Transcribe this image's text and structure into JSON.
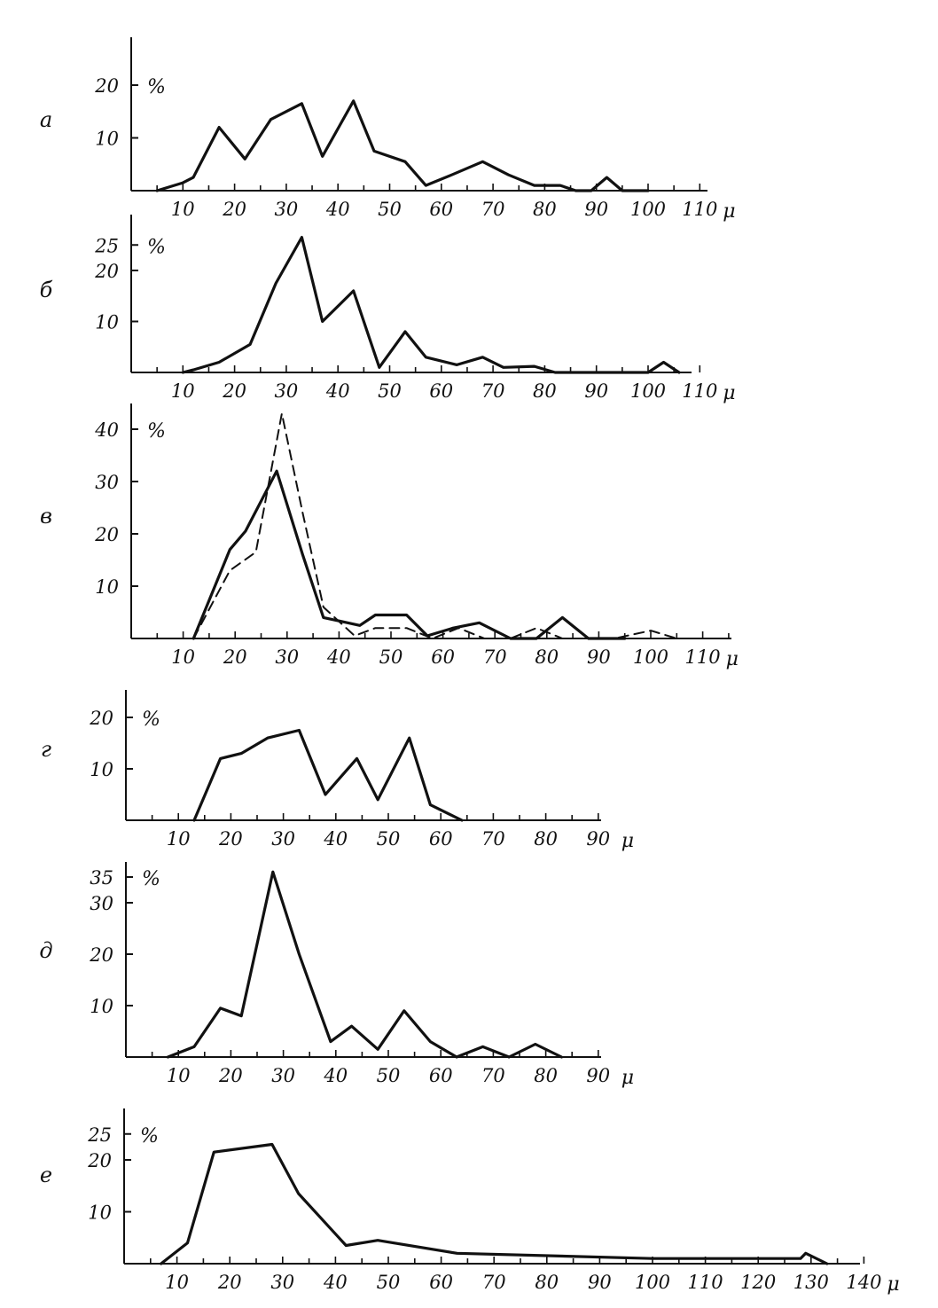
{
  "colors": {
    "ink": "#111111",
    "background": "#ffffff"
  },
  "chart_data": [
    {
      "type": "line",
      "panel_label": "а",
      "unit_y": "%",
      "unit_x": "μ",
      "xlim": [
        0,
        110
      ],
      "ylim": [
        0,
        28
      ],
      "y_ticks": [
        10,
        20
      ],
      "x_ticks": [
        10,
        20,
        30,
        40,
        50,
        60,
        70,
        80,
        90,
        100,
        110
      ],
      "grid": false,
      "series": [
        {
          "style": "solid",
          "points": [
            [
              5,
              0
            ],
            [
              10,
              1.5
            ],
            [
              12,
              2.5
            ],
            [
              17,
              12
            ],
            [
              22,
              6
            ],
            [
              27,
              13.5
            ],
            [
              33,
              16.5
            ],
            [
              37,
              6.5
            ],
            [
              43,
              17
            ],
            [
              47,
              7.5
            ],
            [
              53,
              5.5
            ],
            [
              57,
              1
            ],
            [
              62,
              3
            ],
            [
              68,
              5.5
            ],
            [
              73,
              3
            ],
            [
              78,
              1
            ],
            [
              83,
              1
            ],
            [
              86,
              0
            ],
            [
              89,
              0
            ],
            [
              92,
              2.5
            ],
            [
              95,
              0
            ],
            [
              100,
              0
            ]
          ]
        }
      ]
    },
    {
      "type": "line",
      "panel_label": "б",
      "unit_y": "%",
      "unit_x": "μ",
      "xlim": [
        0,
        110
      ],
      "ylim": [
        0,
        30
      ],
      "y_ticks": [
        10,
        20,
        25
      ],
      "x_ticks": [
        10,
        20,
        30,
        40,
        50,
        60,
        70,
        80,
        90,
        100,
        110
      ],
      "grid": false,
      "series": [
        {
          "style": "solid",
          "points": [
            [
              10,
              0
            ],
            [
              12,
              0.5
            ],
            [
              17,
              2
            ],
            [
              23,
              5.5
            ],
            [
              28,
              17.5
            ],
            [
              33,
              26.5
            ],
            [
              37,
              10
            ],
            [
              43,
              16
            ],
            [
              48,
              1
            ],
            [
              53,
              8
            ],
            [
              57,
              3
            ],
            [
              63,
              1.5
            ],
            [
              68,
              3
            ],
            [
              72,
              1
            ],
            [
              78,
              1.2
            ],
            [
              82,
              0
            ],
            [
              85,
              0
            ],
            [
              100,
              0
            ],
            [
              103,
              2
            ],
            [
              106,
              0
            ]
          ]
        }
      ]
    },
    {
      "type": "line",
      "panel_label": "в",
      "unit_y": "%",
      "unit_x": "μ",
      "xlim": [
        0,
        115
      ],
      "ylim": [
        0,
        45
      ],
      "y_ticks": [
        10,
        20,
        30,
        40
      ],
      "x_ticks": [
        10,
        20,
        30,
        40,
        50,
        60,
        70,
        80,
        90,
        100,
        110
      ],
      "grid": false,
      "series": [
        {
          "style": "solid",
          "points": [
            [
              12,
              0
            ],
            [
              19,
              17
            ],
            [
              22,
              20.5
            ],
            [
              28,
              32
            ],
            [
              33,
              16
            ],
            [
              37,
              4
            ],
            [
              44,
              2.5
            ],
            [
              47,
              4.5
            ],
            [
              53,
              4.5
            ],
            [
              57,
              0.5
            ],
            [
              62,
              2
            ],
            [
              67,
              3
            ],
            [
              73,
              0
            ],
            [
              78,
              0
            ],
            [
              83,
              4
            ],
            [
              88,
              0
            ],
            [
              95,
              0
            ]
          ]
        },
        {
          "style": "dashed",
          "points": [
            [
              12,
              0
            ],
            [
              19,
              13
            ],
            [
              24,
              16.5
            ],
            [
              29,
              43
            ],
            [
              33,
              24
            ],
            [
              37,
              6
            ],
            [
              43,
              0.5
            ],
            [
              47,
              2
            ],
            [
              53,
              2
            ],
            [
              58,
              0
            ],
            [
              63,
              2
            ],
            [
              68,
              0
            ],
            [
              73,
              0
            ],
            [
              78,
              2
            ],
            [
              83,
              0
            ],
            [
              93,
              0
            ],
            [
              100,
              1.5
            ],
            [
              105,
              0
            ]
          ]
        }
      ]
    },
    {
      "type": "line",
      "panel_label": "г",
      "unit_y": "%",
      "unit_x": "μ",
      "xlim": [
        0,
        92
      ],
      "ylim": [
        0,
        24
      ],
      "y_ticks": [
        10,
        20
      ],
      "x_ticks": [
        10,
        20,
        30,
        40,
        50,
        60,
        70,
        80,
        90
      ],
      "grid": false,
      "series": [
        {
          "style": "solid",
          "points": [
            [
              13,
              0
            ],
            [
              18,
              12
            ],
            [
              22,
              13
            ],
            [
              27,
              16
            ],
            [
              33,
              17.5
            ],
            [
              38,
              5
            ],
            [
              44,
              12
            ],
            [
              48,
              4
            ],
            [
              54,
              16
            ],
            [
              58,
              3
            ],
            [
              64,
              0
            ]
          ]
        }
      ]
    },
    {
      "type": "line",
      "panel_label": "д",
      "unit_y": "%",
      "unit_x": "μ",
      "xlim": [
        0,
        92
      ],
      "ylim": [
        0,
        38
      ],
      "y_ticks": [
        10,
        20,
        30,
        35
      ],
      "x_ticks": [
        10,
        20,
        30,
        40,
        50,
        60,
        70,
        80,
        90
      ],
      "grid": false,
      "series": [
        {
          "style": "solid",
          "points": [
            [
              8,
              0
            ],
            [
              13,
              2
            ],
            [
              18,
              9.5
            ],
            [
              22,
              8
            ],
            [
              28,
              36
            ],
            [
              33,
              20
            ],
            [
              39,
              3
            ],
            [
              43,
              6
            ],
            [
              48,
              1.5
            ],
            [
              53,
              9
            ],
            [
              58,
              3
            ],
            [
              63,
              0
            ],
            [
              68,
              2
            ],
            [
              73,
              0
            ],
            [
              78,
              2.5
            ],
            [
              83,
              0
            ]
          ]
        }
      ]
    },
    {
      "type": "line",
      "panel_label": "е",
      "unit_y": "%",
      "unit_x": "μ",
      "xlim": [
        0,
        142
      ],
      "ylim": [
        0,
        30
      ],
      "y_ticks": [
        10,
        20,
        25
      ],
      "x_ticks": [
        10,
        20,
        30,
        40,
        50,
        60,
        70,
        80,
        90,
        100,
        110,
        120,
        130,
        140
      ],
      "grid": false,
      "series": [
        {
          "style": "solid",
          "points": [
            [
              7,
              0
            ],
            [
              12,
              4
            ],
            [
              17,
              21.5
            ],
            [
              28,
              23
            ],
            [
              33,
              13.5
            ],
            [
              42,
              3.5
            ],
            [
              48,
              4.5
            ],
            [
              63,
              2
            ],
            [
              100,
              1
            ],
            [
              128,
              1
            ],
            [
              129,
              2
            ],
            [
              133,
              0
            ]
          ]
        }
      ]
    }
  ]
}
